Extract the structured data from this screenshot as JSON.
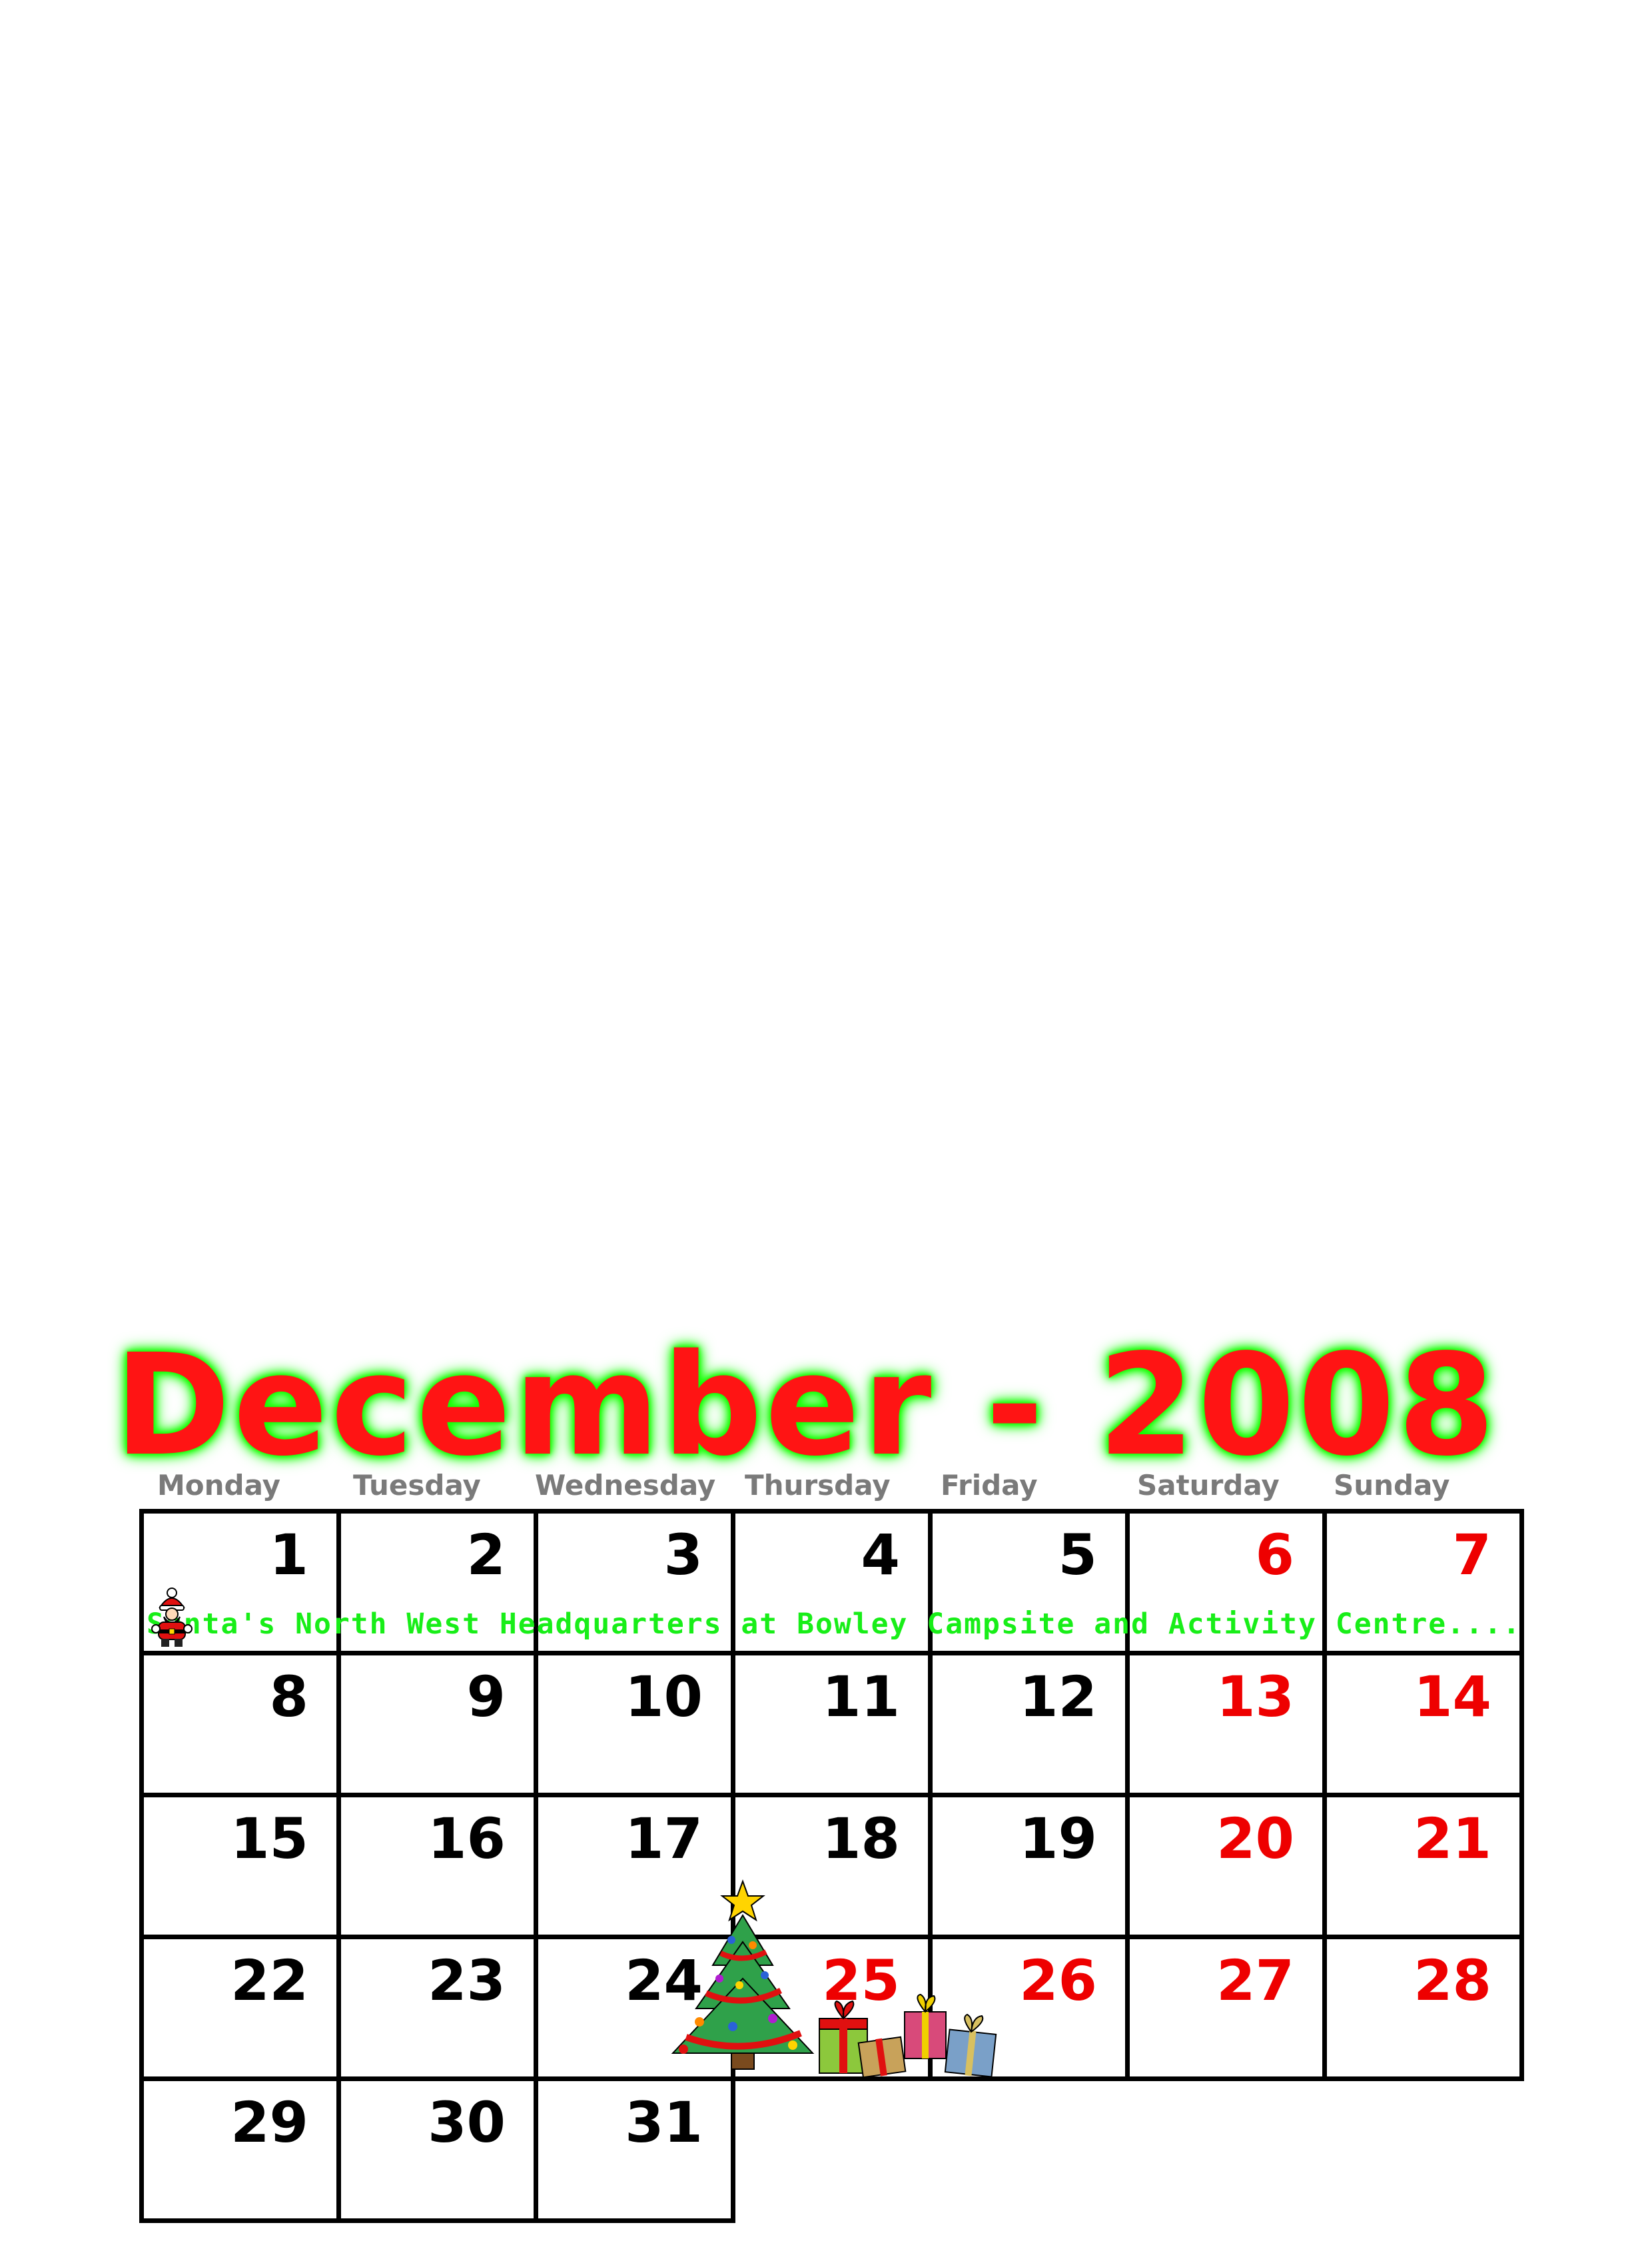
{
  "calendar": {
    "title": "December - 2008",
    "colors": {
      "title": "#ff1414",
      "title_glow": "#13ff00",
      "weekend_date": "#ee0000",
      "weekday_date": "#000000",
      "event_text": "#18ee18",
      "day_header": "#7a7a7a"
    },
    "day_headers": [
      "Monday",
      "Tuesday",
      "Wednesday",
      "Thursday",
      "Friday",
      "Saturday",
      "Sunday"
    ],
    "weeks": [
      [
        "1",
        "2",
        "3",
        "4",
        "5",
        "6",
        "7"
      ],
      [
        "8",
        "9",
        "10",
        "11",
        "12",
        "13",
        "14"
      ],
      [
        "15",
        "16",
        "17",
        "18",
        "19",
        "20",
        "21"
      ],
      [
        "22",
        "23",
        "24",
        "25",
        "26",
        "27",
        "28"
      ],
      [
        "29",
        "30",
        "31"
      ]
    ],
    "red_dates": [
      "6",
      "7",
      "13",
      "14",
      "20",
      "21",
      "25",
      "26",
      "27",
      "28"
    ],
    "event": "Santa's North West Headquarters at Bowley Campsite and Activity Centre....",
    "icons": [
      "santa-icon",
      "christmas-tree-icon",
      "gift-boxes-icon"
    ]
  }
}
